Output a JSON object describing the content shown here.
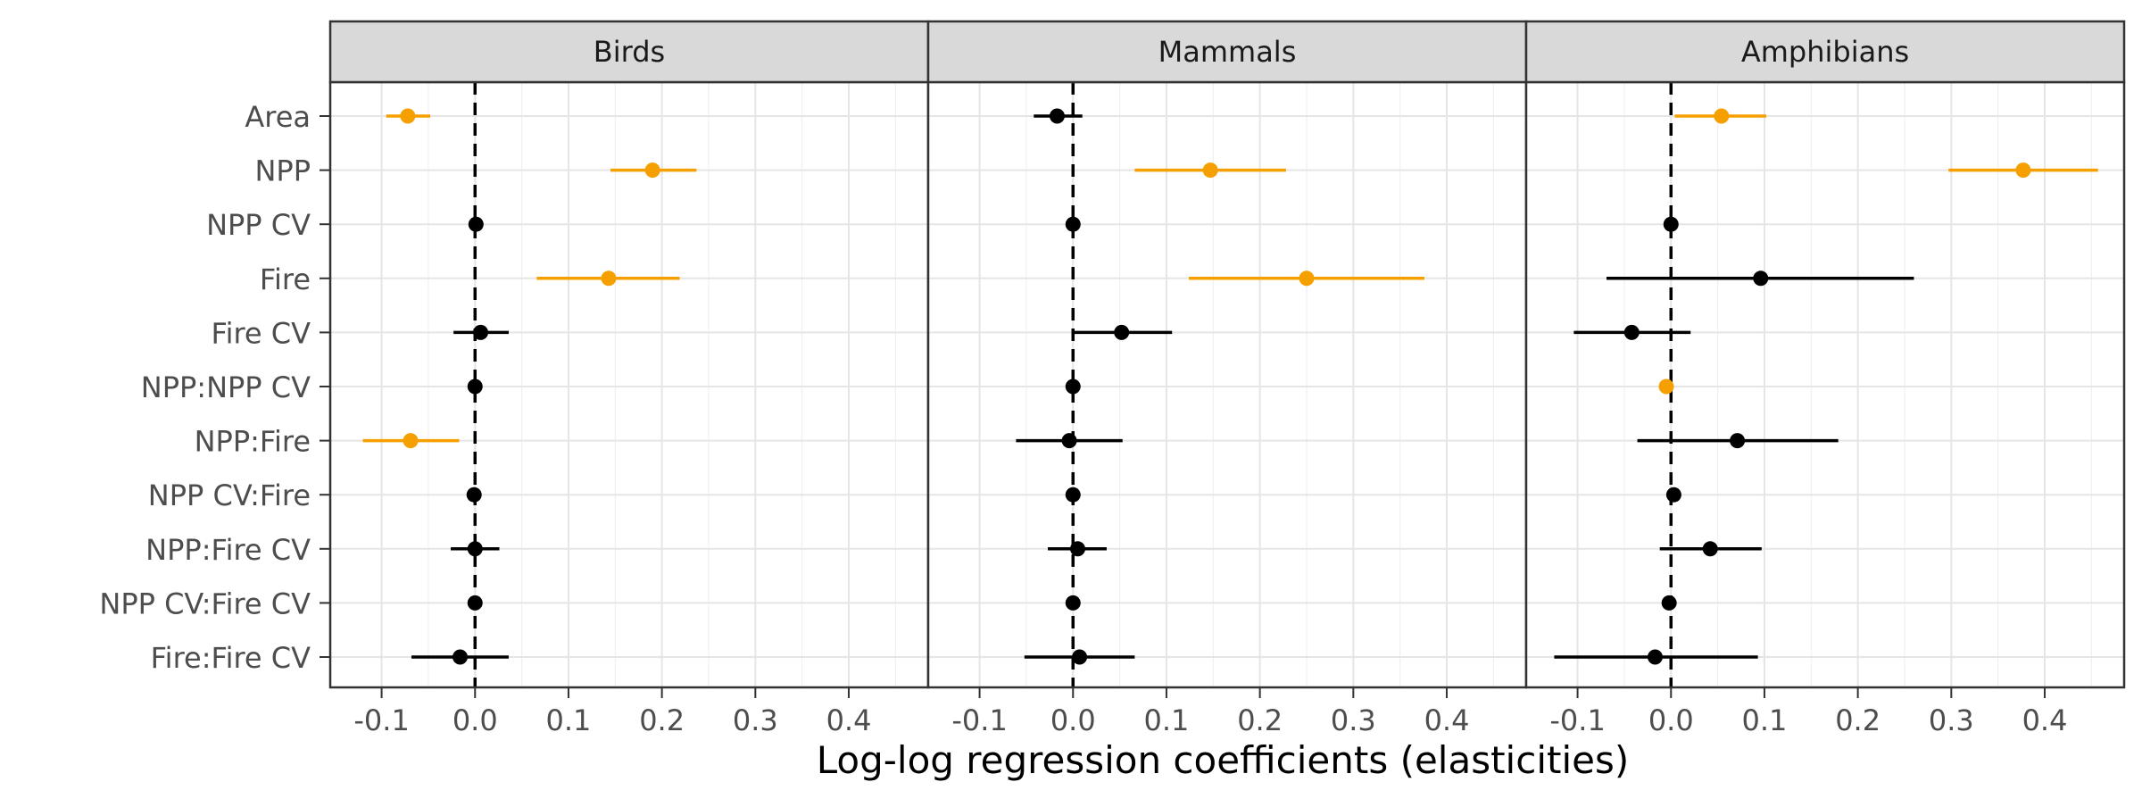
{
  "chart_data": {
    "type": "scatter",
    "subtype": "coefficient-plot-with-error-bars",
    "xlabel": "Log-log regression coefficients (elasticities)",
    "ylabel": "",
    "xlim": [
      -0.155,
      0.485
    ],
    "x_ticks": [
      -0.1,
      0.0,
      0.1,
      0.2,
      0.3,
      0.4
    ],
    "x_tick_labels": [
      "-0.1",
      "0.0",
      "0.1",
      "0.2",
      "0.3",
      "0.4"
    ],
    "reference_line": 0,
    "grid": true,
    "legend": "none",
    "colors": {
      "significant": "#F5A000",
      "nonsignificant": "#000000"
    },
    "categories": [
      "Area",
      "NPP",
      "NPP CV",
      "Fire",
      "Fire CV",
      "NPP:NPP CV",
      "NPP:Fire",
      "NPP CV:Fire",
      "NPP:Fire CV",
      "NPP CV:Fire CV",
      "Fire:Fire CV"
    ],
    "panels": [
      {
        "title": "Birds",
        "points": [
          {
            "term": "Area",
            "estimate": -0.072,
            "low": -0.095,
            "high": -0.048,
            "significant": true
          },
          {
            "term": "NPP",
            "estimate": 0.19,
            "low": 0.145,
            "high": 0.237,
            "significant": true
          },
          {
            "term": "NPP CV",
            "estimate": 0.001,
            "low": -0.002,
            "high": 0.004,
            "significant": false
          },
          {
            "term": "Fire",
            "estimate": 0.143,
            "low": 0.066,
            "high": 0.219,
            "significant": true
          },
          {
            "term": "Fire CV",
            "estimate": 0.006,
            "low": -0.023,
            "high": 0.036,
            "significant": false
          },
          {
            "term": "NPP:NPP CV",
            "estimate": 0.0,
            "low": -0.003,
            "high": 0.003,
            "significant": false
          },
          {
            "term": "NPP:Fire",
            "estimate": -0.069,
            "low": -0.12,
            "high": -0.017,
            "significant": true
          },
          {
            "term": "NPP CV:Fire",
            "estimate": -0.001,
            "low": -0.004,
            "high": 0.002,
            "significant": false
          },
          {
            "term": "NPP:Fire CV",
            "estimate": 0.0,
            "low": -0.026,
            "high": 0.026,
            "significant": false
          },
          {
            "term": "NPP CV:Fire CV",
            "estimate": 0.0,
            "low": -0.003,
            "high": 0.003,
            "significant": false
          },
          {
            "term": "Fire:Fire CV",
            "estimate": -0.016,
            "low": -0.068,
            "high": 0.036,
            "significant": false
          }
        ]
      },
      {
        "title": "Mammals",
        "points": [
          {
            "term": "Area",
            "estimate": -0.017,
            "low": -0.042,
            "high": 0.01,
            "significant": false
          },
          {
            "term": "NPP",
            "estimate": 0.147,
            "low": 0.066,
            "high": 0.228,
            "significant": true
          },
          {
            "term": "NPP CV",
            "estimate": 0.0,
            "low": -0.003,
            "high": 0.003,
            "significant": false
          },
          {
            "term": "Fire",
            "estimate": 0.25,
            "low": 0.124,
            "high": 0.376,
            "significant": true
          },
          {
            "term": "Fire CV",
            "estimate": 0.052,
            "low": 0.0,
            "high": 0.106,
            "significant": false
          },
          {
            "term": "NPP:NPP CV",
            "estimate": 0.0,
            "low": -0.003,
            "high": 0.003,
            "significant": false
          },
          {
            "term": "NPP:Fire",
            "estimate": -0.004,
            "low": -0.061,
            "high": 0.053,
            "significant": false
          },
          {
            "term": "NPP CV:Fire",
            "estimate": 0.0,
            "low": -0.003,
            "high": 0.003,
            "significant": false
          },
          {
            "term": "NPP:Fire CV",
            "estimate": 0.005,
            "low": -0.027,
            "high": 0.036,
            "significant": false
          },
          {
            "term": "NPP CV:Fire CV",
            "estimate": 0.0,
            "low": -0.003,
            "high": 0.003,
            "significant": false
          },
          {
            "term": "Fire:Fire CV",
            "estimate": 0.007,
            "low": -0.052,
            "high": 0.066,
            "significant": false
          }
        ]
      },
      {
        "title": "Amphibians",
        "points": [
          {
            "term": "Area",
            "estimate": 0.054,
            "low": 0.004,
            "high": 0.102,
            "significant": true
          },
          {
            "term": "NPP",
            "estimate": 0.377,
            "low": 0.297,
            "high": 0.457,
            "significant": true
          },
          {
            "term": "NPP CV",
            "estimate": 0.0,
            "low": -0.003,
            "high": 0.003,
            "significant": false
          },
          {
            "term": "Fire",
            "estimate": 0.096,
            "low": -0.069,
            "high": 0.26,
            "significant": false
          },
          {
            "term": "Fire CV",
            "estimate": -0.042,
            "low": -0.104,
            "high": 0.021,
            "significant": false
          },
          {
            "term": "NPP:NPP CV",
            "estimate": -0.005,
            "low": -0.008,
            "high": -0.002,
            "significant": true
          },
          {
            "term": "NPP:Fire",
            "estimate": 0.071,
            "low": -0.036,
            "high": 0.179,
            "significant": false
          },
          {
            "term": "NPP CV:Fire",
            "estimate": 0.003,
            "low": 0.0,
            "high": 0.006,
            "significant": false
          },
          {
            "term": "NPP:Fire CV",
            "estimate": 0.042,
            "low": -0.012,
            "high": 0.097,
            "significant": false
          },
          {
            "term": "NPP CV:Fire CV",
            "estimate": -0.002,
            "low": -0.005,
            "high": 0.001,
            "significant": false
          },
          {
            "term": "Fire:Fire CV",
            "estimate": -0.017,
            "low": -0.125,
            "high": 0.093,
            "significant": false
          }
        ]
      }
    ]
  }
}
